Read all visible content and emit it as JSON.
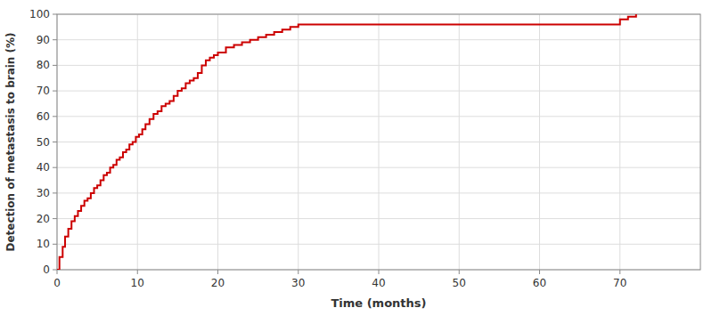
{
  "chart_data": {
    "type": "step",
    "xlabel": "Time (months)",
    "ylabel": "Detection of metastasis to brain (%)",
    "x": [
      0,
      0.3,
      0.7,
      1.0,
      1.4,
      1.8,
      2.2,
      2.6,
      3.0,
      3.4,
      3.8,
      4.2,
      4.6,
      5.0,
      5.4,
      5.8,
      6.2,
      6.6,
      7.0,
      7.4,
      7.8,
      8.2,
      8.6,
      9.0,
      9.4,
      9.8,
      10.2,
      10.6,
      11.0,
      11.5,
      12.0,
      12.5,
      13.0,
      13.5,
      14.0,
      14.5,
      15.0,
      15.5,
      16.0,
      16.5,
      17.0,
      17.5,
      18.0,
      18.5,
      19.0,
      19.5,
      20.0,
      21.0,
      22.0,
      23.0,
      24.0,
      25.0,
      26.0,
      27.0,
      28.0,
      29.0,
      30.0,
      31.0,
      32.0,
      33.0,
      34.0,
      35.0,
      36.0,
      40.0,
      45.0,
      50.0,
      55.0,
      60.0,
      65.0,
      70.0,
      71.0,
      72.0
    ],
    "values": [
      0,
      5,
      9,
      13,
      16,
      19,
      21,
      23,
      25,
      27,
      28,
      30,
      32,
      33,
      35,
      37,
      38,
      40,
      41,
      43,
      44,
      46,
      47,
      49,
      50,
      52,
      53,
      55,
      57,
      59,
      61,
      62,
      64,
      65,
      66,
      68,
      70,
      71,
      73,
      74,
      75,
      77,
      80,
      82,
      83,
      84,
      85,
      87,
      88,
      89,
      90,
      91,
      92,
      93,
      94,
      95,
      96,
      96,
      96,
      96,
      96,
      96,
      96,
      96,
      96,
      96,
      96,
      96,
      96,
      98,
      99,
      100
    ],
    "color": "#cc0000",
    "xlim": [
      0,
      80
    ],
    "ylim": [
      0,
      100
    ],
    "xticks": [
      0,
      10,
      20,
      30,
      40,
      50,
      60,
      70
    ],
    "yticks": [
      0,
      10,
      20,
      30,
      40,
      50,
      60,
      70,
      80,
      90,
      100
    ],
    "grid": true
  }
}
